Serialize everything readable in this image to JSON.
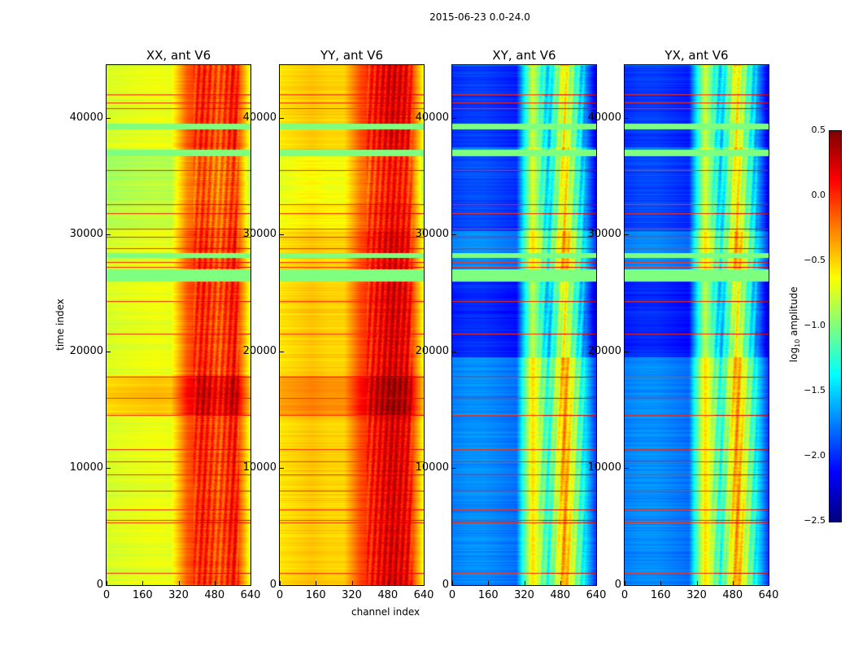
{
  "suptitle": "2015-06-23 0.0-24.0",
  "xlabel": "channel index",
  "ylabel": "time index",
  "colorbar": {
    "label": "log10 amplitude",
    "label_main": "log",
    "label_sub": "10",
    "label_rest": " amplitude",
    "cmap": "jet",
    "range": [
      -2.5,
      0.5
    ],
    "ticks": [
      "0.5",
      "0.0",
      "−0.5",
      "−1.0",
      "−1.5",
      "−2.0",
      "−2.5"
    ],
    "tick_values": [
      0.5,
      0.0,
      -0.5,
      -1.0,
      -1.5,
      -2.0,
      -2.5
    ]
  },
  "chart_data": [
    {
      "type": "heatmap",
      "title": "XX, ant V6",
      "xlim": [
        0,
        640
      ],
      "ylim": [
        0,
        44500
      ],
      "xticks": [
        "0",
        "160",
        "320",
        "480",
        "640"
      ],
      "xtick_values": [
        0,
        160,
        320,
        480,
        640
      ],
      "yticks": [
        "0",
        "10000",
        "20000",
        "30000",
        "40000"
      ],
      "ytick_values": [
        0,
        10000,
        20000,
        30000,
        40000
      ],
      "channel_profile": [
        -0.75,
        -0.72,
        -0.7,
        -0.68,
        -0.7,
        -0.15,
        0.05,
        -0.15,
        0.1,
        -0.75
      ],
      "time_segments": [
        {
          "t0": 14500,
          "t1": 17900,
          "offset": 0.25
        },
        {
          "t0": 30300,
          "t1": 32500,
          "offset": -0.1
        },
        {
          "t0": 32500,
          "t1": 36700,
          "offset": -0.15
        }
      ],
      "flagged": [
        {
          "t0": 26000,
          "t1": 27000,
          "value": -1.0
        },
        {
          "t0": 36700,
          "t1": 37300,
          "value": -1.0
        },
        {
          "t0": 39000,
          "t1": 39500,
          "value": -1.0
        },
        {
          "t0": 28000,
          "t1": 28400,
          "value": -1.0
        }
      ],
      "lines": [
        1000,
        5300,
        5500,
        6400,
        8000,
        9400,
        10500,
        11600,
        14500,
        16000,
        17800,
        21500,
        24300,
        27200,
        27600,
        28800,
        29800,
        30500,
        31800,
        32600,
        35500,
        40800,
        41300,
        42000
      ]
    },
    {
      "type": "heatmap",
      "title": "YY, ant V6",
      "xlim": [
        0,
        640
      ],
      "ylim": [
        0,
        44500
      ],
      "xticks": [
        "0",
        "160",
        "320",
        "480",
        "640"
      ],
      "xtick_values": [
        0,
        160,
        320,
        480,
        640
      ],
      "yticks": [
        "0",
        "10000",
        "20000",
        "30000",
        "40000"
      ],
      "ytick_values": [
        0,
        10000,
        20000,
        30000,
        40000
      ],
      "channel_profile": [
        -0.55,
        -0.5,
        -0.45,
        -0.5,
        -0.5,
        -0.1,
        0.1,
        0.25,
        0.15,
        -0.7
      ],
      "time_segments": [
        {
          "t0": 14500,
          "t1": 17900,
          "offset": 0.2
        },
        {
          "t0": 30300,
          "t1": 32500,
          "offset": -0.1
        },
        {
          "t0": 32500,
          "t1": 36700,
          "offset": -0.15
        }
      ],
      "flagged": [
        {
          "t0": 26000,
          "t1": 27000,
          "value": -1.0
        },
        {
          "t0": 36700,
          "t1": 37300,
          "value": -1.0
        },
        {
          "t0": 39000,
          "t1": 39500,
          "value": -1.0
        },
        {
          "t0": 28000,
          "t1": 28400,
          "value": -1.0
        }
      ],
      "lines": [
        1000,
        5300,
        5500,
        6400,
        8000,
        9400,
        10500,
        11600,
        14500,
        16000,
        17800,
        21500,
        24300,
        27200,
        27600,
        28800,
        29800,
        30500,
        31800,
        32600,
        35500,
        40800,
        41300,
        42000
      ]
    },
    {
      "type": "heatmap",
      "title": "XY, ant V6",
      "xlim": [
        0,
        640
      ],
      "ylim": [
        0,
        44500
      ],
      "xticks": [
        "0",
        "160",
        "320",
        "480",
        "640"
      ],
      "xtick_values": [
        0,
        160,
        320,
        480,
        640
      ],
      "yticks": [
        "0",
        "10000",
        "20000",
        "30000",
        "40000"
      ],
      "ytick_values": [
        0,
        10000,
        20000,
        30000,
        40000
      ],
      "channel_profile": [
        -1.75,
        -1.7,
        -1.7,
        -1.75,
        -1.8,
        -0.5,
        -1.3,
        -0.3,
        -1.2,
        -2.0
      ],
      "time_segments": [
        {
          "t0": 19500,
          "t1": 26000,
          "offset": -0.3
        },
        {
          "t0": 37500,
          "t1": 44500,
          "offset": -0.25
        },
        {
          "t0": 30300,
          "t1": 36700,
          "offset": -0.2
        }
      ],
      "flagged": [
        {
          "t0": 26000,
          "t1": 27000,
          "value": -1.0
        },
        {
          "t0": 36700,
          "t1": 37300,
          "value": -1.0
        },
        {
          "t0": 39000,
          "t1": 39500,
          "value": -1.0
        },
        {
          "t0": 28000,
          "t1": 28400,
          "value": -1.0
        }
      ],
      "lines": [
        1000,
        5300,
        5500,
        6400,
        8000,
        9400,
        10500,
        11600,
        14500,
        16000,
        17800,
        21500,
        24300,
        27200,
        27600,
        28800,
        29800,
        30500,
        31800,
        32600,
        35500,
        40800,
        41300,
        42000
      ]
    },
    {
      "type": "heatmap",
      "title": "YX, ant V6",
      "xlim": [
        0,
        640
      ],
      "ylim": [
        0,
        44500
      ],
      "xticks": [
        "0",
        "160",
        "320",
        "480",
        "640"
      ],
      "xtick_values": [
        0,
        160,
        320,
        480,
        640
      ],
      "yticks": [
        "0",
        "10000",
        "20000",
        "30000",
        "40000"
      ],
      "ytick_values": [
        0,
        10000,
        20000,
        30000,
        40000
      ],
      "channel_profile": [
        -1.75,
        -1.7,
        -1.7,
        -1.75,
        -1.8,
        -0.5,
        -1.3,
        -0.3,
        -1.2,
        -2.0
      ],
      "time_segments": [
        {
          "t0": 19500,
          "t1": 26000,
          "offset": -0.3
        },
        {
          "t0": 37500,
          "t1": 44500,
          "offset": -0.25
        },
        {
          "t0": 30300,
          "t1": 36700,
          "offset": -0.2
        }
      ],
      "flagged": [
        {
          "t0": 26000,
          "t1": 27000,
          "value": -1.0
        },
        {
          "t0": 36700,
          "t1": 37300,
          "value": -1.0
        },
        {
          "t0": 39000,
          "t1": 39500,
          "value": -1.0
        },
        {
          "t0": 28000,
          "t1": 28400,
          "value": -1.0
        }
      ],
      "lines": [
        1000,
        5300,
        5500,
        6400,
        8000,
        9400,
        10500,
        11600,
        14500,
        16000,
        17800,
        21500,
        24300,
        27200,
        27600,
        28800,
        29800,
        30500,
        31800,
        32600,
        35500,
        40800,
        41300,
        42000
      ]
    }
  ]
}
